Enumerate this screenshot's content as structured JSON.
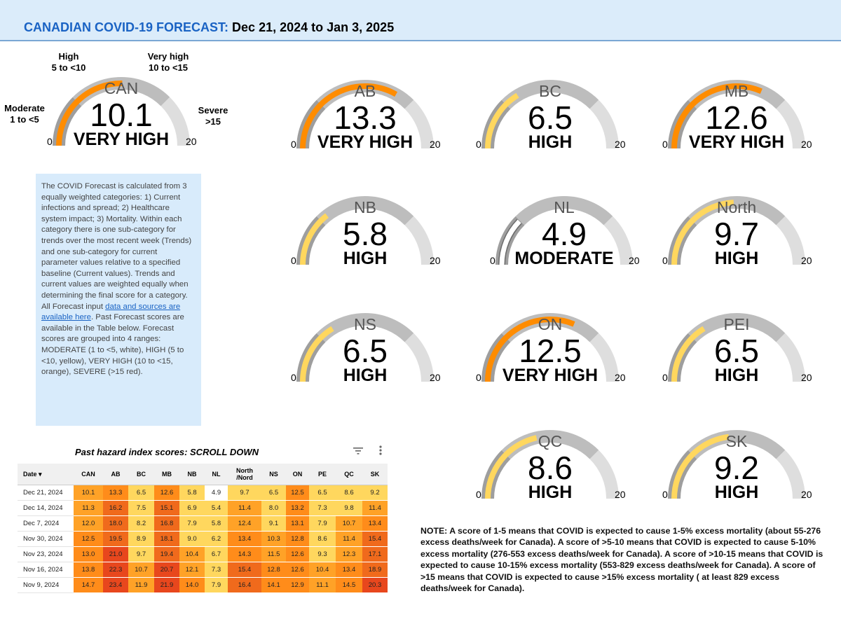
{
  "header": {
    "brand": "CANADIAN COVID-19 FORECAST",
    "separator": ":",
    "dates": "Dec 21, 2024 to Jan 3, 2025"
  },
  "colors": {
    "moderate": "#ffffff",
    "high": "#ffd75e",
    "very_high": "#ff8c00",
    "severe": "#e8471d",
    "track_light": "#dedede",
    "track_mid": "#bdbdbd",
    "track_dark": "#9e9e9e"
  },
  "legend": {
    "moderate": {
      "name": "Moderate",
      "range": "1 to <5"
    },
    "high": {
      "name": "High",
      "range": "5 to <10"
    },
    "very_high": {
      "name": "Very high",
      "range": "10 to <15"
    },
    "severe": {
      "name": "Severe",
      "range": ">15"
    }
  },
  "gauges": [
    {
      "region": "CAN",
      "value": "10.1",
      "level": "VERY HIGH",
      "min": "0",
      "max": "20"
    },
    {
      "region": "AB",
      "value": "13.3",
      "level": "VERY HIGH",
      "min": "0",
      "max": "20"
    },
    {
      "region": "BC",
      "value": "6.5",
      "level": "HIGH",
      "min": "0",
      "max": "20"
    },
    {
      "region": "MB",
      "value": "12.6",
      "level": "VERY HIGH",
      "min": "0",
      "max": "20"
    },
    {
      "region": "NB",
      "value": "5.8",
      "level": "HIGH",
      "min": "0",
      "max": "20"
    },
    {
      "region": "NL",
      "value": "4.9",
      "level": "MODERATE",
      "min": "0",
      "max": "20"
    },
    {
      "region": "North",
      "value": "9.7",
      "level": "HIGH",
      "min": "0",
      "max": "20"
    },
    {
      "region": "NS",
      "value": "6.5",
      "level": "HIGH",
      "min": "0",
      "max": "20"
    },
    {
      "region": "ON",
      "value": "12.5",
      "level": "VERY HIGH",
      "min": "0",
      "max": "20"
    },
    {
      "region": "PEI",
      "value": "6.5",
      "level": "HIGH",
      "min": "0",
      "max": "20"
    },
    {
      "region": "QC",
      "value": "8.6",
      "level": "HIGH",
      "min": "0",
      "max": "20"
    },
    {
      "region": "SK",
      "value": "9.2",
      "level": "HIGH",
      "min": "0",
      "max": "20"
    }
  ],
  "info": {
    "text_before": "The COVID Forecast is calculated from 3 equally weighted categories: 1) Current infections and spread; 2) Healthcare system impact; 3) Mortality. Within each category there is one sub-category for trends over the most recent week (Trends) and one sub-category for current parameter values relative to a specified baseline (Current values). Trends and current values are weighted equally when determining the final score for a category. All Forecast input ",
    "link": "data and sources are available here",
    "text_after": ". Past Forecast scores are available in the Table below. Forecast scores are grouped into 4 ranges: MODERATE (1 to <5, white), HIGH (5 to <10, yellow), VERY HIGH (10 to <15, orange), SEVERE (>15 red)."
  },
  "table": {
    "title": "Past hazard index scores: SCROLL DOWN",
    "date_header": "Date",
    "columns": [
      "CAN",
      "AB",
      "BC",
      "MB",
      "NB",
      "NL",
      "North /Nord",
      "NS",
      "ON",
      "PE",
      "QC",
      "SK"
    ],
    "rows": [
      {
        "date": "Dec 21, 2024",
        "values": [
          10.1,
          13.3,
          6.5,
          12.6,
          5.8,
          4.9,
          9.7,
          6.5,
          12.5,
          6.5,
          8.6,
          9.2
        ]
      },
      {
        "date": "Dec 14, 2024",
        "values": [
          11.3,
          16.2,
          7.5,
          15.1,
          6.9,
          5.4,
          11.4,
          8.0,
          13.2,
          7.3,
          9.8,
          11.4
        ]
      },
      {
        "date": "Dec 7, 2024",
        "values": [
          12.0,
          18.0,
          8.2,
          16.8,
          7.9,
          5.8,
          12.4,
          9.1,
          13.1,
          7.9,
          10.7,
          13.4
        ]
      },
      {
        "date": "Nov 30, 2024",
        "values": [
          12.5,
          19.5,
          8.9,
          18.1,
          9.0,
          6.2,
          13.4,
          10.3,
          12.8,
          8.6,
          11.4,
          15.4
        ]
      },
      {
        "date": "Nov 23, 2024",
        "values": [
          13.0,
          21.0,
          9.7,
          19.4,
          10.4,
          6.7,
          14.3,
          11.5,
          12.6,
          9.3,
          12.3,
          17.1
        ]
      },
      {
        "date": "Nov 16, 2024",
        "values": [
          13.8,
          22.3,
          10.7,
          20.7,
          12.1,
          7.3,
          15.4,
          12.8,
          12.6,
          10.4,
          13.4,
          18.9
        ]
      },
      {
        "date": "Nov 9, 2024",
        "values": [
          14.7,
          23.4,
          11.9,
          21.9,
          14.0,
          7.9,
          16.4,
          14.1,
          12.9,
          11.1,
          14.5,
          20.3
        ]
      }
    ]
  },
  "note": "NOTE: A score of 1-5 means that COVID is expected to cause 1-5% excess mortality (about 55-276 excess deaths/week for Canada). A score of >5-10 means that COVID is expected to cause 5-10% excess mortality (276-553 excess deaths/week for Canada). A score of >10-15 means that COVID is expected to cause 10-15% excess mortality (553-829 excess deaths/week for Canada). A score of >15 means that COVID is expected to cause >15% excess mortality ( at least 829 excess deaths/week for Canada).",
  "chart_data": {
    "type": "table",
    "title": "Past hazard index scores: SCROLL DOWN",
    "gauge_range": [
      0,
      20
    ],
    "categories": [
      "CAN",
      "AB",
      "BC",
      "MB",
      "NB",
      "NL",
      "North",
      "NS",
      "ON",
      "PEI",
      "QC",
      "SK"
    ],
    "current_values": [
      10.1,
      13.3,
      6.5,
      12.6,
      5.8,
      4.9,
      9.7,
      6.5,
      12.5,
      6.5,
      8.6,
      9.2
    ],
    "current_levels": [
      "VERY HIGH",
      "VERY HIGH",
      "HIGH",
      "VERY HIGH",
      "HIGH",
      "MODERATE",
      "HIGH",
      "HIGH",
      "VERY HIGH",
      "HIGH",
      "HIGH",
      "HIGH"
    ]
  }
}
